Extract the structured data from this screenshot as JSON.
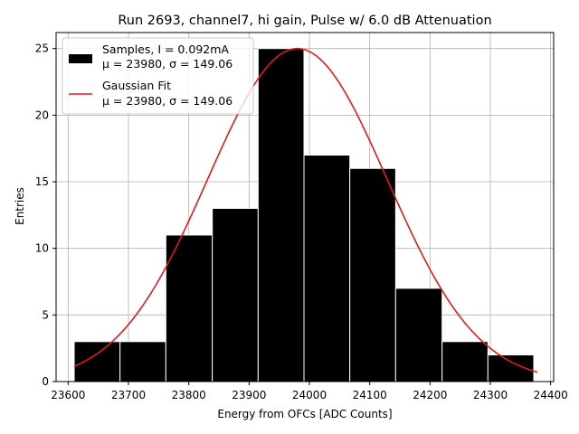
{
  "chart_data": {
    "type": "bar",
    "title": "Run 2693, channel7, hi gain, Pulse w/ 6.0 dB Attenuation",
    "xlabel": "Energy from OFCs [ADC Counts]",
    "ylabel": "Entries",
    "xlim": [
      23580,
      24405
    ],
    "ylim": [
      0,
      26.2
    ],
    "xticks": [
      23600,
      23700,
      23800,
      23900,
      24000,
      24100,
      24200,
      24300,
      24400
    ],
    "yticks": [
      0,
      5,
      10,
      15,
      20,
      25
    ],
    "grid": true,
    "legend_position": "top-left",
    "bins": [
      {
        "x0": 23610,
        "x1": 23686,
        "count": 3
      },
      {
        "x0": 23686,
        "x1": 23762,
        "count": 3
      },
      {
        "x0": 23762,
        "x1": 23839,
        "count": 11
      },
      {
        "x0": 23839,
        "x1": 23915,
        "count": 13
      },
      {
        "x0": 23915,
        "x1": 23991,
        "count": 25
      },
      {
        "x0": 23991,
        "x1": 24067,
        "count": 17
      },
      {
        "x0": 24067,
        "x1": 24143,
        "count": 16
      },
      {
        "x0": 24143,
        "x1": 24220,
        "count": 7
      },
      {
        "x0": 24220,
        "x1": 24296,
        "count": 3
      },
      {
        "x0": 24296,
        "x1": 24372,
        "count": 2
      }
    ],
    "fit": {
      "mu": 23980,
      "sigma": 149.06,
      "amplitude": 25,
      "x_range": [
        23610,
        24378
      ],
      "color": "#e31a1c"
    },
    "bar_color": "#000000",
    "bar_edge_color": "#ffffff",
    "legend": [
      {
        "name": "samples",
        "line1": "Samples, I = 0.092mA",
        "line2": "μ = 23980, σ = 149.06",
        "color": "#000000"
      },
      {
        "name": "fit",
        "line1": "Gaussian Fit",
        "line2": "μ = 23980, σ = 149.06",
        "color": "#e31a1c"
      }
    ]
  }
}
